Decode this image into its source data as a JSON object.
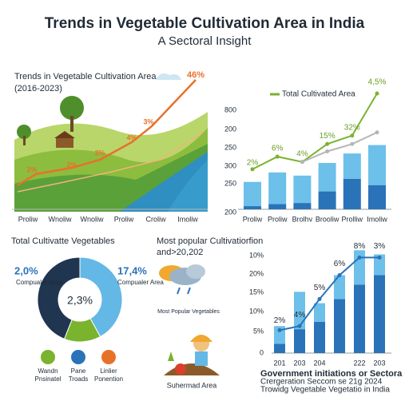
{
  "header": {
    "title": "Trends in Vegetable Cultivation Area in India",
    "subtitle": "A Sectoral Insight"
  },
  "chart_data": [
    {
      "type": "illustration",
      "title": "Trends in Vegetable Cultivation Area",
      "subtitle": "(2016-2023)",
      "categories": [
        "Proliw",
        "Wnoliw",
        "Wnoliw",
        "Proliw",
        "Croliw",
        "Imoliw"
      ],
      "annotations": [
        "2%",
        "2%",
        "3%",
        "4%",
        "3%",
        "46%"
      ],
      "color": "#e8712a"
    },
    {
      "type": "bar",
      "legend": "Total Cultivated Area",
      "categories": [
        "Proliw",
        "Proliw",
        "Brolhv",
        "Brooliw",
        "Prolliw",
        "Imoliw"
      ],
      "axis_labels": [
        "800",
        "200",
        "250",
        "300",
        "250",
        "200"
      ],
      "ylim": [
        0,
        110
      ],
      "series": [
        {
          "color": "#2a73b8",
          "values": [
            3,
            5,
            6,
            17,
            29,
            23
          ]
        },
        {
          "color": "#6cc0ea",
          "values": [
            23,
            30,
            26,
            27,
            24,
            38
          ]
        },
        {
          "type": "line",
          "color": "#7ab32e",
          "values": [
            38,
            50,
            45,
            62,
            70,
            110
          ]
        },
        {
          "type": "line",
          "color": "#b5b5b5",
          "values": [
            null,
            null,
            45,
            55,
            62,
            73
          ]
        }
      ],
      "annotations": [
        "2%",
        "6%",
        "4%",
        "15%",
        "32%",
        "4,5%"
      ]
    },
    {
      "type": "pie",
      "title": "Total Cultivatte Vegetables",
      "values": [
        42,
        14,
        44
      ],
      "colors": [
        "#63b8e6",
        "#7ab32e",
        "#1f3550"
      ],
      "annotations": [
        {
          "value": "2,0%",
          "label": "Compualer Area"
        },
        {
          "value": "17,4%",
          "label": "Compualer Area"
        }
      ],
      "center_label": "2,3%",
      "icons": [
        {
          "label": [
            "Wandn",
            "Pnsinatel"
          ],
          "color": "#7ab32e"
        },
        {
          "label": [
            "Pane",
            "Troads"
          ],
          "color": "#2a73b8"
        },
        {
          "label": [
            "Linlier",
            "Ponention"
          ],
          "color": "#e8712a"
        }
      ]
    },
    {
      "type": "illustration",
      "title": [
        "Most popular Cultivatiorfion",
        "and>20,202"
      ],
      "captions": [
        "Most Popular Vegetables",
        "Suhermad Area"
      ]
    },
    {
      "type": "bar",
      "categories": [
        "201",
        "203",
        "204",
        null,
        "222",
        "203"
      ],
      "axis_labels": [
        "10%",
        "20%",
        "15%",
        "10%",
        "5%",
        "0"
      ],
      "ylim": [
        0,
        100
      ],
      "series": [
        {
          "color": "#2a73b8",
          "values": [
            9,
            23,
            30,
            52,
            66,
            75
          ]
        },
        {
          "color": "#6cc0ea",
          "values": [
            17,
            36,
            18,
            23,
            33,
            20
          ]
        },
        {
          "type": "line",
          "color": "#2a73b8",
          "values": [
            22,
            26,
            52,
            75,
            92,
            92
          ]
        }
      ],
      "annotations": [
        "2%",
        "4%",
        "5%",
        "6%",
        "8%",
        "3%"
      ]
    }
  ],
  "footer": [
    "Government initiations or Sectora",
    "Crergeration Seccom se 21g 2024",
    "Trowidg Vegetable Vegetatio in India"
  ]
}
